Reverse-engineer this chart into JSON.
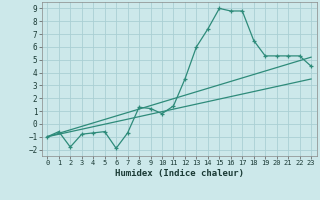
{
  "xlabel": "Humidex (Indice chaleur)",
  "xlim": [
    -0.5,
    23.5
  ],
  "ylim": [
    -2.5,
    9.5
  ],
  "xticks": [
    0,
    1,
    2,
    3,
    4,
    5,
    6,
    7,
    8,
    9,
    10,
    11,
    12,
    13,
    14,
    15,
    16,
    17,
    18,
    19,
    20,
    21,
    22,
    23
  ],
  "yticks": [
    -2,
    -1,
    0,
    1,
    2,
    3,
    4,
    5,
    6,
    7,
    8,
    9
  ],
  "bg_color": "#cce8ea",
  "grid_color": "#aacfd4",
  "line_color": "#2e8b7a",
  "line1_x": [
    0,
    1,
    2,
    3,
    4,
    5,
    6,
    7,
    8,
    9,
    10,
    11,
    12,
    13,
    14,
    15,
    16,
    17,
    18,
    19,
    20,
    21,
    22,
    23
  ],
  "line1_y": [
    -1.0,
    -0.6,
    -1.8,
    -0.8,
    -0.7,
    -0.6,
    -1.9,
    -0.7,
    1.3,
    1.2,
    0.8,
    1.4,
    3.5,
    6.0,
    7.4,
    9.0,
    8.8,
    8.8,
    6.5,
    5.3,
    5.3,
    5.3,
    5.3,
    4.5
  ],
  "line2_x": [
    0,
    23
  ],
  "line2_y": [
    -1.0,
    3.5
  ],
  "line3_x": [
    0,
    23
  ],
  "line3_y": [
    -1.0,
    5.2
  ],
  "marker": "+"
}
